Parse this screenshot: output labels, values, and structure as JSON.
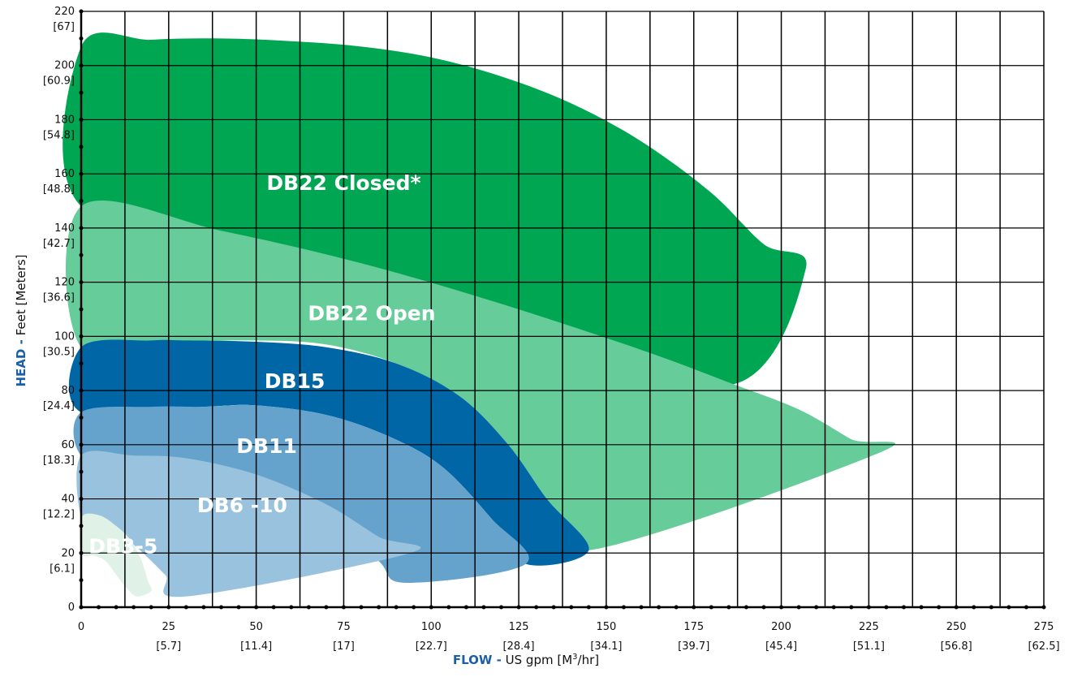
{
  "chart_data": {
    "type": "area",
    "x_axis": {
      "title_strong": "FLOW -",
      "title_rest": "US gpm [M",
      "title_sup": "3",
      "title_end": "/hr]",
      "ticks": [
        {
          "value": 0,
          "label": "0",
          "sub": ""
        },
        {
          "value": 25,
          "label": "25",
          "sub": "[5.7]"
        },
        {
          "value": 50,
          "label": "50",
          "sub": "[11.4]"
        },
        {
          "value": 75,
          "label": "75",
          "sub": "[17]"
        },
        {
          "value": 100,
          "label": "100",
          "sub": "[22.7]"
        },
        {
          "value": 125,
          "label": "125",
          "sub": "[28.4]"
        },
        {
          "value": 150,
          "label": "150",
          "sub": "[34.1]"
        },
        {
          "value": 175,
          "label": "175",
          "sub": "[39.7]"
        },
        {
          "value": 200,
          "label": "200",
          "sub": "[45.4]"
        },
        {
          "value": 225,
          "label": "225",
          "sub": "[51.1]"
        },
        {
          "value": 250,
          "label": "250",
          "sub": "[56.8]"
        },
        {
          "value": 275,
          "label": "275",
          "sub": "[62.5]"
        }
      ],
      "range": [
        0,
        275
      ]
    },
    "y_axis": {
      "title_strong": "HEAD -",
      "title_rest": "Feet [Meters]",
      "ticks": [
        {
          "value": 0,
          "label": "0",
          "sub": ""
        },
        {
          "value": 20,
          "label": "20",
          "sub": "[6.1]"
        },
        {
          "value": 40,
          "label": "40",
          "sub": "[12.2]"
        },
        {
          "value": 60,
          "label": "60",
          "sub": "[18.3]"
        },
        {
          "value": 80,
          "label": "80",
          "sub": "[24.4]"
        },
        {
          "value": 100,
          "label": "100",
          "sub": "[30.5]"
        },
        {
          "value": 120,
          "label": "120",
          "sub": "[36.6]"
        },
        {
          "value": 140,
          "label": "140",
          "sub": "[42.7]"
        },
        {
          "value": 160,
          "label": "160",
          "sub": "[48.8]"
        },
        {
          "value": 180,
          "label": "180",
          "sub": "[54.8]"
        },
        {
          "value": 200,
          "label": "200",
          "sub": "[60.9]"
        },
        {
          "value": 220,
          "label": "220",
          "sub": "[67]"
        }
      ],
      "range": [
        0,
        220
      ]
    },
    "grid": true,
    "series": [
      {
        "name": "DB22 Closed*",
        "color": "#00a651",
        "label_at": [
          75,
          154
        ],
        "outline": [
          [
            0,
            207
          ],
          [
            20,
            209.5
          ],
          [
            40,
            210
          ],
          [
            60,
            209
          ],
          [
            80,
            207
          ],
          [
            100,
            203
          ],
          [
            120,
            196
          ],
          [
            140,
            186
          ],
          [
            160,
            172
          ],
          [
            180,
            153
          ],
          [
            195,
            134
          ],
          [
            207,
            125
          ],
          [
            185,
            82
          ],
          [
            120,
            110
          ],
          [
            60,
            130
          ],
          [
            0,
            148
          ]
        ]
      },
      {
        "name": "DB22 Open",
        "color": "#66cc99",
        "label_at": [
          83,
          106
        ],
        "outline": [
          [
            0,
            148
          ],
          [
            40,
            139
          ],
          [
            80,
            127
          ],
          [
            120,
            112
          ],
          [
            160,
            95
          ],
          [
            185,
            83
          ],
          [
            205,
            73
          ],
          [
            220,
            62
          ],
          [
            228,
            57
          ],
          [
            145,
            21
          ],
          [
            133,
            40
          ],
          [
            122,
            60
          ],
          [
            108,
            78
          ],
          [
            90,
            90
          ],
          [
            70,
            97
          ],
          [
            50,
            98.5
          ],
          [
            30,
            98
          ],
          [
            0,
            96
          ]
        ]
      },
      {
        "name": "DB15",
        "color": "#0066a6",
        "label_at": [
          61,
          81
        ],
        "outline": [
          [
            0,
            96
          ],
          [
            20,
            98.5
          ],
          [
            30,
            98.5
          ],
          [
            50,
            98
          ],
          [
            70,
            96
          ],
          [
            90,
            90
          ],
          [
            108,
            78
          ],
          [
            122,
            60
          ],
          [
            133,
            40
          ],
          [
            145,
            21
          ],
          [
            127,
            16
          ],
          [
            117,
            33
          ],
          [
            103,
            52
          ],
          [
            88,
            63
          ],
          [
            70,
            71
          ],
          [
            50,
            74.5
          ],
          [
            35,
            74
          ],
          [
            0,
            72
          ]
        ]
      },
      {
        "name": "DB11",
        "color": "#66a3cc",
        "label_at": [
          53,
          57
        ],
        "outline": [
          [
            0,
            72
          ],
          [
            20,
            74
          ],
          [
            35,
            74
          ],
          [
            50,
            74.5
          ],
          [
            70,
            71
          ],
          [
            88,
            63
          ],
          [
            103,
            52
          ],
          [
            117,
            33
          ],
          [
            127,
            16
          ],
          [
            93,
            9
          ],
          [
            85,
            17
          ],
          [
            70,
            36
          ],
          [
            50,
            46.5
          ],
          [
            30,
            49
          ],
          [
            15,
            50
          ],
          [
            0,
            56
          ]
        ]
      },
      {
        "name": "DB6 -10",
        "color": "#99c2de",
        "label_at": [
          46,
          35
        ],
        "outline": [
          [
            0,
            56
          ],
          [
            15,
            56
          ],
          [
            30,
            55
          ],
          [
            50,
            49
          ],
          [
            70,
            38
          ],
          [
            85,
            26
          ],
          [
            94,
            20
          ],
          [
            30,
            4
          ],
          [
            24,
            12
          ],
          [
            16,
            22
          ],
          [
            10,
            28
          ],
          [
            5,
            33
          ],
          [
            0,
            33
          ]
        ]
      },
      {
        "name": "DB3-5",
        "color": "#e0f1e8",
        "label_at": [
          12,
          20
        ],
        "outline": [
          [
            0,
            33
          ],
          [
            5,
            34
          ],
          [
            10,
            30
          ],
          [
            14,
            25
          ],
          [
            17,
            18
          ],
          [
            19,
            10
          ],
          [
            20,
            6
          ],
          [
            16,
            4
          ],
          [
            13,
            7
          ],
          [
            10,
            12
          ],
          [
            7,
            17
          ],
          [
            4,
            19
          ],
          [
            0,
            20
          ]
        ]
      }
    ]
  }
}
